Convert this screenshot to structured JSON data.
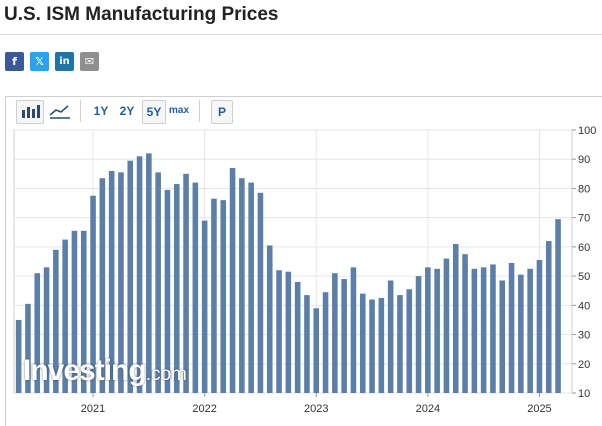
{
  "page": {
    "title": "U.S. ISM Manufacturing Prices"
  },
  "share": {
    "facebook": "f",
    "x": "𝕏",
    "linkedin": "in",
    "email": "✉"
  },
  "toolbar": {
    "bar_chart_icon": "bar-chart-icon",
    "line_chart_icon": "line-chart-icon",
    "range_1y": "1Y",
    "range_2y": "2Y",
    "range_5y": "5Y",
    "range_max": "max",
    "preliminary": "P",
    "selected_range": "5Y"
  },
  "watermark": {
    "brand": "Investing",
    "suffix": ".com"
  },
  "colors": {
    "bar": "#5b7fa8",
    "link": "#1f5fa5"
  },
  "chart_data": {
    "type": "bar",
    "title": "U.S. ISM Manufacturing Prices",
    "ylim": [
      10,
      100
    ],
    "yticks": [
      10,
      20,
      30,
      40,
      50,
      60,
      70,
      80,
      90,
      100
    ],
    "x_tick_labels": [
      "2021",
      "2022",
      "2023",
      "2024",
      "2025"
    ],
    "x_tick_positions": [
      "2021-01",
      "2022-01",
      "2023-01",
      "2024-01",
      "2025-01"
    ],
    "grid": true,
    "axis_position": "right",
    "series": [
      {
        "x": [
          "2020-05",
          "2020-06",
          "2020-07",
          "2020-08",
          "2020-09",
          "2020-10",
          "2020-11",
          "2020-12",
          "2021-01",
          "2021-02",
          "2021-03",
          "2021-04",
          "2021-05",
          "2021-06",
          "2021-07",
          "2021-08",
          "2021-09",
          "2021-10",
          "2021-11",
          "2021-12",
          "2022-01",
          "2022-02",
          "2022-03",
          "2022-04",
          "2022-05",
          "2022-06",
          "2022-07",
          "2022-08",
          "2022-09",
          "2022-10",
          "2022-11",
          "2022-12",
          "2023-01",
          "2023-02",
          "2023-03",
          "2023-04",
          "2023-05",
          "2023-06",
          "2023-07",
          "2023-08",
          "2023-09",
          "2023-10",
          "2023-11",
          "2023-12",
          "2024-01",
          "2024-02",
          "2024-03",
          "2024-04",
          "2024-05",
          "2024-06",
          "2024-07",
          "2024-08",
          "2024-09",
          "2024-10",
          "2024-11",
          "2024-12",
          "2025-01",
          "2025-02",
          "2025-03",
          "2025-04"
        ],
        "values": [
          35.0,
          40.5,
          51.0,
          53.0,
          59.0,
          62.5,
          65.5,
          65.5,
          77.5,
          83.5,
          86.0,
          85.5,
          89.5,
          91.0,
          92.0,
          85.5,
          79.5,
          81.5,
          85.0,
          82.0,
          69.0,
          76.5,
          76.0,
          87.0,
          83.5,
          82.0,
          78.5,
          60.5,
          52.0,
          51.5,
          48.0,
          43.5,
          39.0,
          44.5,
          51.0,
          49.0,
          53.0,
          44.0,
          42.0,
          42.5,
          48.5,
          43.5,
          45.5,
          50.0,
          53.0,
          52.5,
          56.0,
          61.0,
          57.5,
          52.5,
          53.0,
          54.0,
          48.5,
          54.5,
          50.5,
          52.5,
          55.5,
          62.0,
          69.5,
          null
        ]
      }
    ]
  }
}
